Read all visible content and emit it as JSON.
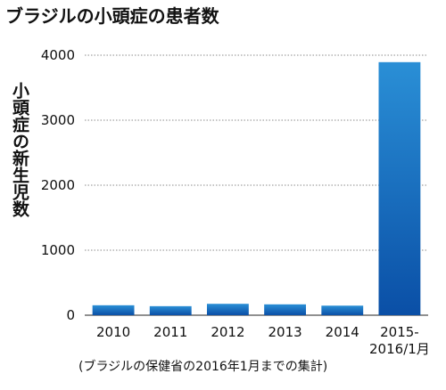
{
  "title": "ブラジルの小頭症の患者数",
  "note": "(ブラジルの保健省の2016年1月までの集計)",
  "chart_data": {
    "type": "bar",
    "title": "ブラジルの小頭症の患者数",
    "xlabel": "",
    "ylabel": "小頭症の新生児数",
    "categories": [
      "2010",
      "2011",
      "2012",
      "2013",
      "2014",
      "2015-\n2016/1月"
    ],
    "category_lines": [
      [
        "2010"
      ],
      [
        "2011"
      ],
      [
        "2012"
      ],
      [
        "2013"
      ],
      [
        "2014"
      ],
      [
        "2015-",
        "2016/1月"
      ]
    ],
    "values": [
      153,
      139,
      175,
      167,
      147,
      3893
    ],
    "ylim": [
      0,
      4000
    ],
    "yticks": [
      "0",
      "1000",
      "2000",
      "3000",
      "4000"
    ],
    "ytick_values": [
      0,
      1000,
      2000,
      3000,
      4000
    ],
    "grid": true,
    "bar_colors": {
      "top": "#2a8fd6",
      "bottom": "#0a4fa6"
    },
    "grid_color": "#666666"
  }
}
